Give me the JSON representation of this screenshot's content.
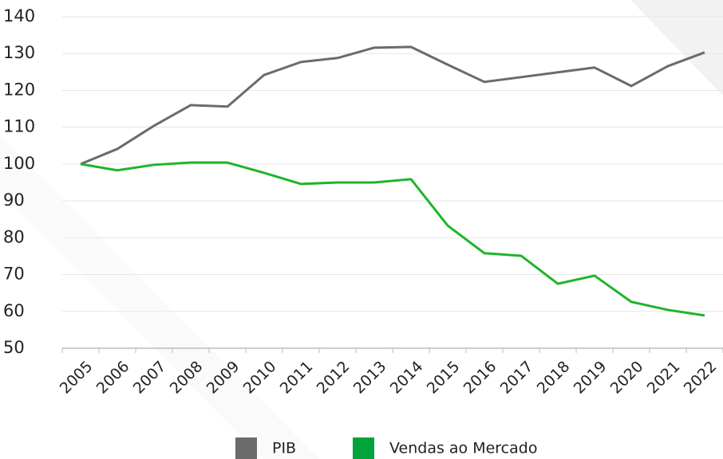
{
  "chart_data": {
    "type": "line",
    "categories": [
      "2005",
      "2006",
      "2007",
      "2008",
      "2009",
      "2010",
      "2011",
      "2012",
      "2013",
      "2014",
      "2015",
      "2016",
      "2017",
      "2018",
      "2019",
      "2020",
      "2021",
      "2022"
    ],
    "series": [
      {
        "name": "PIB",
        "color": "#6b6b6b",
        "values": [
          100,
          104.1,
          110.4,
          116,
          115.6,
          124.2,
          127.7,
          128.8,
          131.6,
          131.8,
          127,
          122.3,
          123.6,
          124.9,
          126.2,
          121.2,
          126.6,
          130.3
        ]
      },
      {
        "name": "Vendas ao Mercado",
        "color": "#1fb52a",
        "values": [
          100,
          98.3,
          99.8,
          100.4,
          100.4,
          97.6,
          94.6,
          95,
          95,
          95.9,
          83.3,
          75.8,
          75.1,
          67.5,
          69.7,
          62.6,
          60.4,
          58.9
        ]
      }
    ],
    "ylim": [
      50,
      140
    ],
    "yticks": [
      50,
      60,
      70,
      80,
      90,
      100,
      110,
      120,
      130,
      140
    ],
    "grid": true
  }
}
